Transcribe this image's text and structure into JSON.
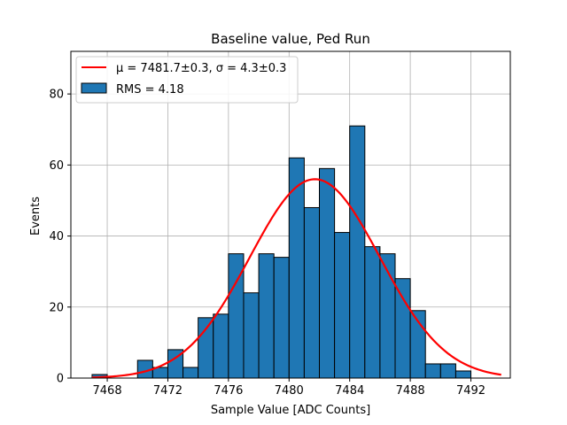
{
  "chart_data": {
    "type": "bar",
    "title": "Baseline value, Ped Run",
    "xlabel": "Sample Value [ADC Counts]",
    "ylabel": "Events",
    "xlim": [
      7465.6,
      7494.6
    ],
    "ylim": [
      0,
      92
    ],
    "xticks": [
      7468,
      7472,
      7476,
      7480,
      7484,
      7488,
      7492
    ],
    "yticks": [
      0,
      20,
      40,
      60,
      80
    ],
    "grid": true,
    "bin_width": 1,
    "bins": [
      {
        "x": 7467,
        "count": 1
      },
      {
        "x": 7468,
        "count": 0
      },
      {
        "x": 7469,
        "count": 0
      },
      {
        "x": 7470,
        "count": 5
      },
      {
        "x": 7471,
        "count": 3
      },
      {
        "x": 7472,
        "count": 8
      },
      {
        "x": 7473,
        "count": 3
      },
      {
        "x": 7474,
        "count": 17
      },
      {
        "x": 7475,
        "count": 18
      },
      {
        "x": 7476,
        "count": 35
      },
      {
        "x": 7477,
        "count": 24
      },
      {
        "x": 7478,
        "count": 35
      },
      {
        "x": 7479,
        "count": 34
      },
      {
        "x": 7480,
        "count": 62
      },
      {
        "x": 7481,
        "count": 48
      },
      {
        "x": 7482,
        "count": 59
      },
      {
        "x": 7483,
        "count": 41
      },
      {
        "x": 7484,
        "count": 71
      },
      {
        "x": 7485,
        "count": 37
      },
      {
        "x": 7486,
        "count": 35
      },
      {
        "x": 7487,
        "count": 28
      },
      {
        "x": 7488,
        "count": 19
      },
      {
        "x": 7489,
        "count": 4
      },
      {
        "x": 7490,
        "count": 4
      },
      {
        "x": 7491,
        "count": 2
      }
    ],
    "fit": {
      "mu": 7481.7,
      "sigma": 4.3,
      "amplitude": 56,
      "x_range": [
        7467,
        7494
      ],
      "color": "#ff0000"
    },
    "bar_color": "#1f77b4",
    "legend": {
      "position": "top-left",
      "entries": [
        {
          "label": "μ = 7481.7±0.3, σ = 4.3±0.3",
          "kind": "line",
          "color": "#ff0000"
        },
        {
          "label": "RMS = 4.18",
          "kind": "patch",
          "color": "#1f77b4"
        }
      ]
    }
  }
}
